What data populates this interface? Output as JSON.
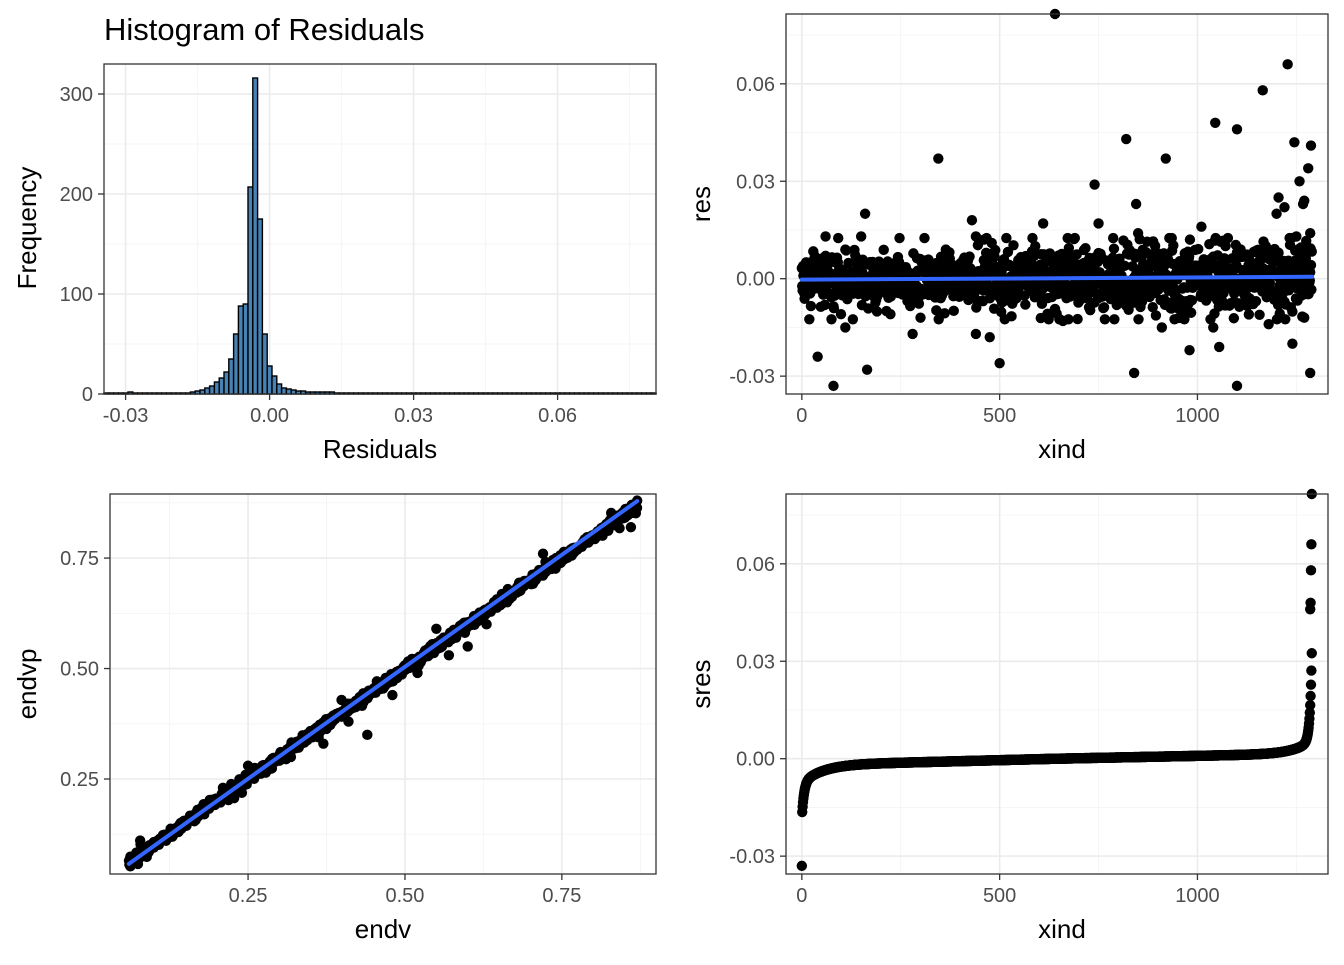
{
  "chart_data": [
    {
      "id": "hist",
      "type": "bar",
      "title": "Histogram of Residuals",
      "xlabel": "Residuals",
      "ylabel": "Frequency",
      "xlim": [
        -0.0345,
        0.0805
      ],
      "ylim": [
        0,
        330
      ],
      "xticks": [
        -0.03,
        0.0,
        0.03,
        0.06
      ],
      "xtick_labels": [
        "-0.03",
        "0.00",
        "0.03",
        "0.06"
      ],
      "yticks": [
        0,
        100,
        200,
        300
      ],
      "ytick_labels": [
        "0",
        "100",
        "200",
        "300"
      ],
      "bin_start": -0.0345,
      "bin_width": 0.001,
      "fill_color": "#4682b4",
      "outline_color": "#000000",
      "counts": [
        1,
        1,
        1,
        1,
        1,
        2,
        1,
        1,
        1,
        1,
        1,
        1,
        1,
        1,
        1,
        1,
        1,
        1,
        2,
        3,
        4,
        6,
        8,
        12,
        16,
        22,
        35,
        60,
        88,
        90,
        207,
        316,
        175,
        60,
        28,
        18,
        10,
        6,
        5,
        4,
        3,
        3,
        2,
        2,
        2,
        2,
        2,
        2,
        1,
        1,
        1,
        1,
        1,
        1,
        1,
        1,
        1,
        1,
        1,
        1,
        1,
        1,
        1,
        1,
        1,
        1,
        1,
        1,
        1,
        1,
        1,
        1,
        1,
        1,
        1,
        1,
        1,
        1,
        1,
        1,
        1,
        1,
        1,
        1,
        1,
        1,
        1,
        1,
        1,
        1,
        1,
        1,
        1,
        1,
        1,
        1,
        1,
        1,
        1,
        1,
        1,
        1,
        1,
        1,
        1,
        1,
        1,
        1,
        1,
        1,
        1,
        1,
        1,
        1,
        1
      ]
    },
    {
      "id": "res-scatter",
      "type": "scatter",
      "title": "",
      "xlabel": "xind",
      "ylabel": "res",
      "xlim": [
        -40,
        1330
      ],
      "ylim": [
        -0.0355,
        0.0815
      ],
      "xticks": [
        0,
        500,
        1000
      ],
      "xtick_labels": [
        "0",
        "500",
        "1000"
      ],
      "yticks": [
        -0.03,
        0.0,
        0.03,
        0.06
      ],
      "ytick_labels": [
        "-0.03",
        "0.00",
        "0.03",
        "0.06"
      ],
      "n_points": 1290,
      "bulk_sd": 0.0035,
      "outliers": [
        {
          "x": 640,
          "y": 0.0815
        },
        {
          "x": 1228,
          "y": 0.066
        },
        {
          "x": 1165,
          "y": 0.058
        },
        {
          "x": 1045,
          "y": 0.048
        },
        {
          "x": 1100,
          "y": 0.046
        },
        {
          "x": 820,
          "y": 0.043
        },
        {
          "x": 1245,
          "y": 0.042
        },
        {
          "x": 1287,
          "y": 0.041
        },
        {
          "x": 345,
          "y": 0.037
        },
        {
          "x": 920,
          "y": 0.037
        },
        {
          "x": 1280,
          "y": 0.034
        },
        {
          "x": 1258,
          "y": 0.03
        },
        {
          "x": 740,
          "y": 0.029
        },
        {
          "x": 845,
          "y": 0.023
        },
        {
          "x": 1205,
          "y": 0.025
        },
        {
          "x": 1270,
          "y": 0.024
        },
        {
          "x": 1220,
          "y": 0.022
        },
        {
          "x": 1267,
          "y": 0.023
        },
        {
          "x": 160,
          "y": 0.02
        },
        {
          "x": 430,
          "y": 0.018
        },
        {
          "x": 1200,
          "y": 0.02
        },
        {
          "x": 610,
          "y": 0.017
        },
        {
          "x": 750,
          "y": 0.017
        },
        {
          "x": 1010,
          "y": 0.016
        },
        {
          "x": 850,
          "y": 0.014
        },
        {
          "x": 150,
          "y": 0.013
        },
        {
          "x": 1285,
          "y": 0.014
        },
        {
          "x": 440,
          "y": 0.013
        },
        {
          "x": 460,
          "y": 0.012
        },
        {
          "x": 480,
          "y": 0.011
        },
        {
          "x": 590,
          "y": 0.01
        },
        {
          "x": 60,
          "y": 0.013
        },
        {
          "x": 1250,
          "y": 0.013
        },
        {
          "x": 80,
          "y": -0.033
        },
        {
          "x": 1100,
          "y": -0.033
        },
        {
          "x": 40,
          "y": -0.024
        },
        {
          "x": 840,
          "y": -0.029
        },
        {
          "x": 165,
          "y": -0.028
        },
        {
          "x": 1285,
          "y": -0.029
        },
        {
          "x": 500,
          "y": -0.026
        },
        {
          "x": 1240,
          "y": -0.02
        },
        {
          "x": 980,
          "y": -0.022
        },
        {
          "x": 1055,
          "y": -0.021
        },
        {
          "x": 280,
          "y": -0.017
        },
        {
          "x": 475,
          "y": -0.018
        },
        {
          "x": 440,
          "y": -0.017
        },
        {
          "x": 110,
          "y": -0.015
        },
        {
          "x": 910,
          "y": -0.015
        },
        {
          "x": 1040,
          "y": -0.015
        },
        {
          "x": 300,
          "y": -0.012
        },
        {
          "x": 660,
          "y": -0.013
        },
        {
          "x": 1270,
          "y": -0.012
        },
        {
          "x": 1180,
          "y": -0.014
        },
        {
          "x": 1130,
          "y": -0.011
        }
      ],
      "fit_line": {
        "color": "#3366ff",
        "x": [
          0,
          1290
        ],
        "y": [
          -0.0003,
          0.0006
        ]
      }
    },
    {
      "id": "endv-scatter",
      "type": "scatter",
      "title": "",
      "xlabel": "endv",
      "ylabel": "endvp",
      "xlim": [
        0.03,
        0.9
      ],
      "ylim": [
        0.035,
        0.895
      ],
      "xticks": [
        0.25,
        0.5,
        0.75
      ],
      "xtick_labels": [
        "0.25",
        "0.50",
        "0.75"
      ],
      "yticks": [
        0.25,
        0.5,
        0.75
      ],
      "ytick_labels": [
        "0.25",
        "0.50",
        "0.75"
      ],
      "n_points": 1290,
      "x_range": [
        0.06,
        0.87
      ],
      "outliers": [
        {
          "x": 0.87,
          "y": 0.88
        },
        {
          "x": 0.86,
          "y": 0.82
        },
        {
          "x": 0.74,
          "y": 0.73
        },
        {
          "x": 0.72,
          "y": 0.76
        },
        {
          "x": 0.6,
          "y": 0.55
        },
        {
          "x": 0.57,
          "y": 0.53
        },
        {
          "x": 0.44,
          "y": 0.35
        },
        {
          "x": 0.37,
          "y": 0.33
        },
        {
          "x": 0.48,
          "y": 0.44
        },
        {
          "x": 0.55,
          "y": 0.59
        },
        {
          "x": 0.52,
          "y": 0.49
        },
        {
          "x": 0.63,
          "y": 0.6
        },
        {
          "x": 0.41,
          "y": 0.38
        },
        {
          "x": 0.21,
          "y": 0.23
        },
        {
          "x": 0.25,
          "y": 0.28
        }
      ],
      "fit_line": {
        "color": "#3366ff",
        "x": [
          0.06,
          0.87
        ],
        "y": [
          0.058,
          0.879
        ]
      }
    },
    {
      "id": "sres-scatter",
      "type": "scatter",
      "title": "",
      "xlabel": "xind",
      "ylabel": "sres",
      "xlim": [
        -40,
        1330
      ],
      "ylim": [
        -0.0355,
        0.0815
      ],
      "xticks": [
        0,
        500,
        1000
      ],
      "xtick_labels": [
        "0",
        "500",
        "1000"
      ],
      "yticks": [
        -0.03,
        0.0,
        0.03,
        0.06
      ],
      "ytick_labels": [
        "-0.03",
        "0.00",
        "0.03",
        "0.06"
      ],
      "n_points": 1290,
      "max_values": [
        0.0815,
        0.066,
        0.058,
        0.048,
        0.046
      ]
    }
  ]
}
